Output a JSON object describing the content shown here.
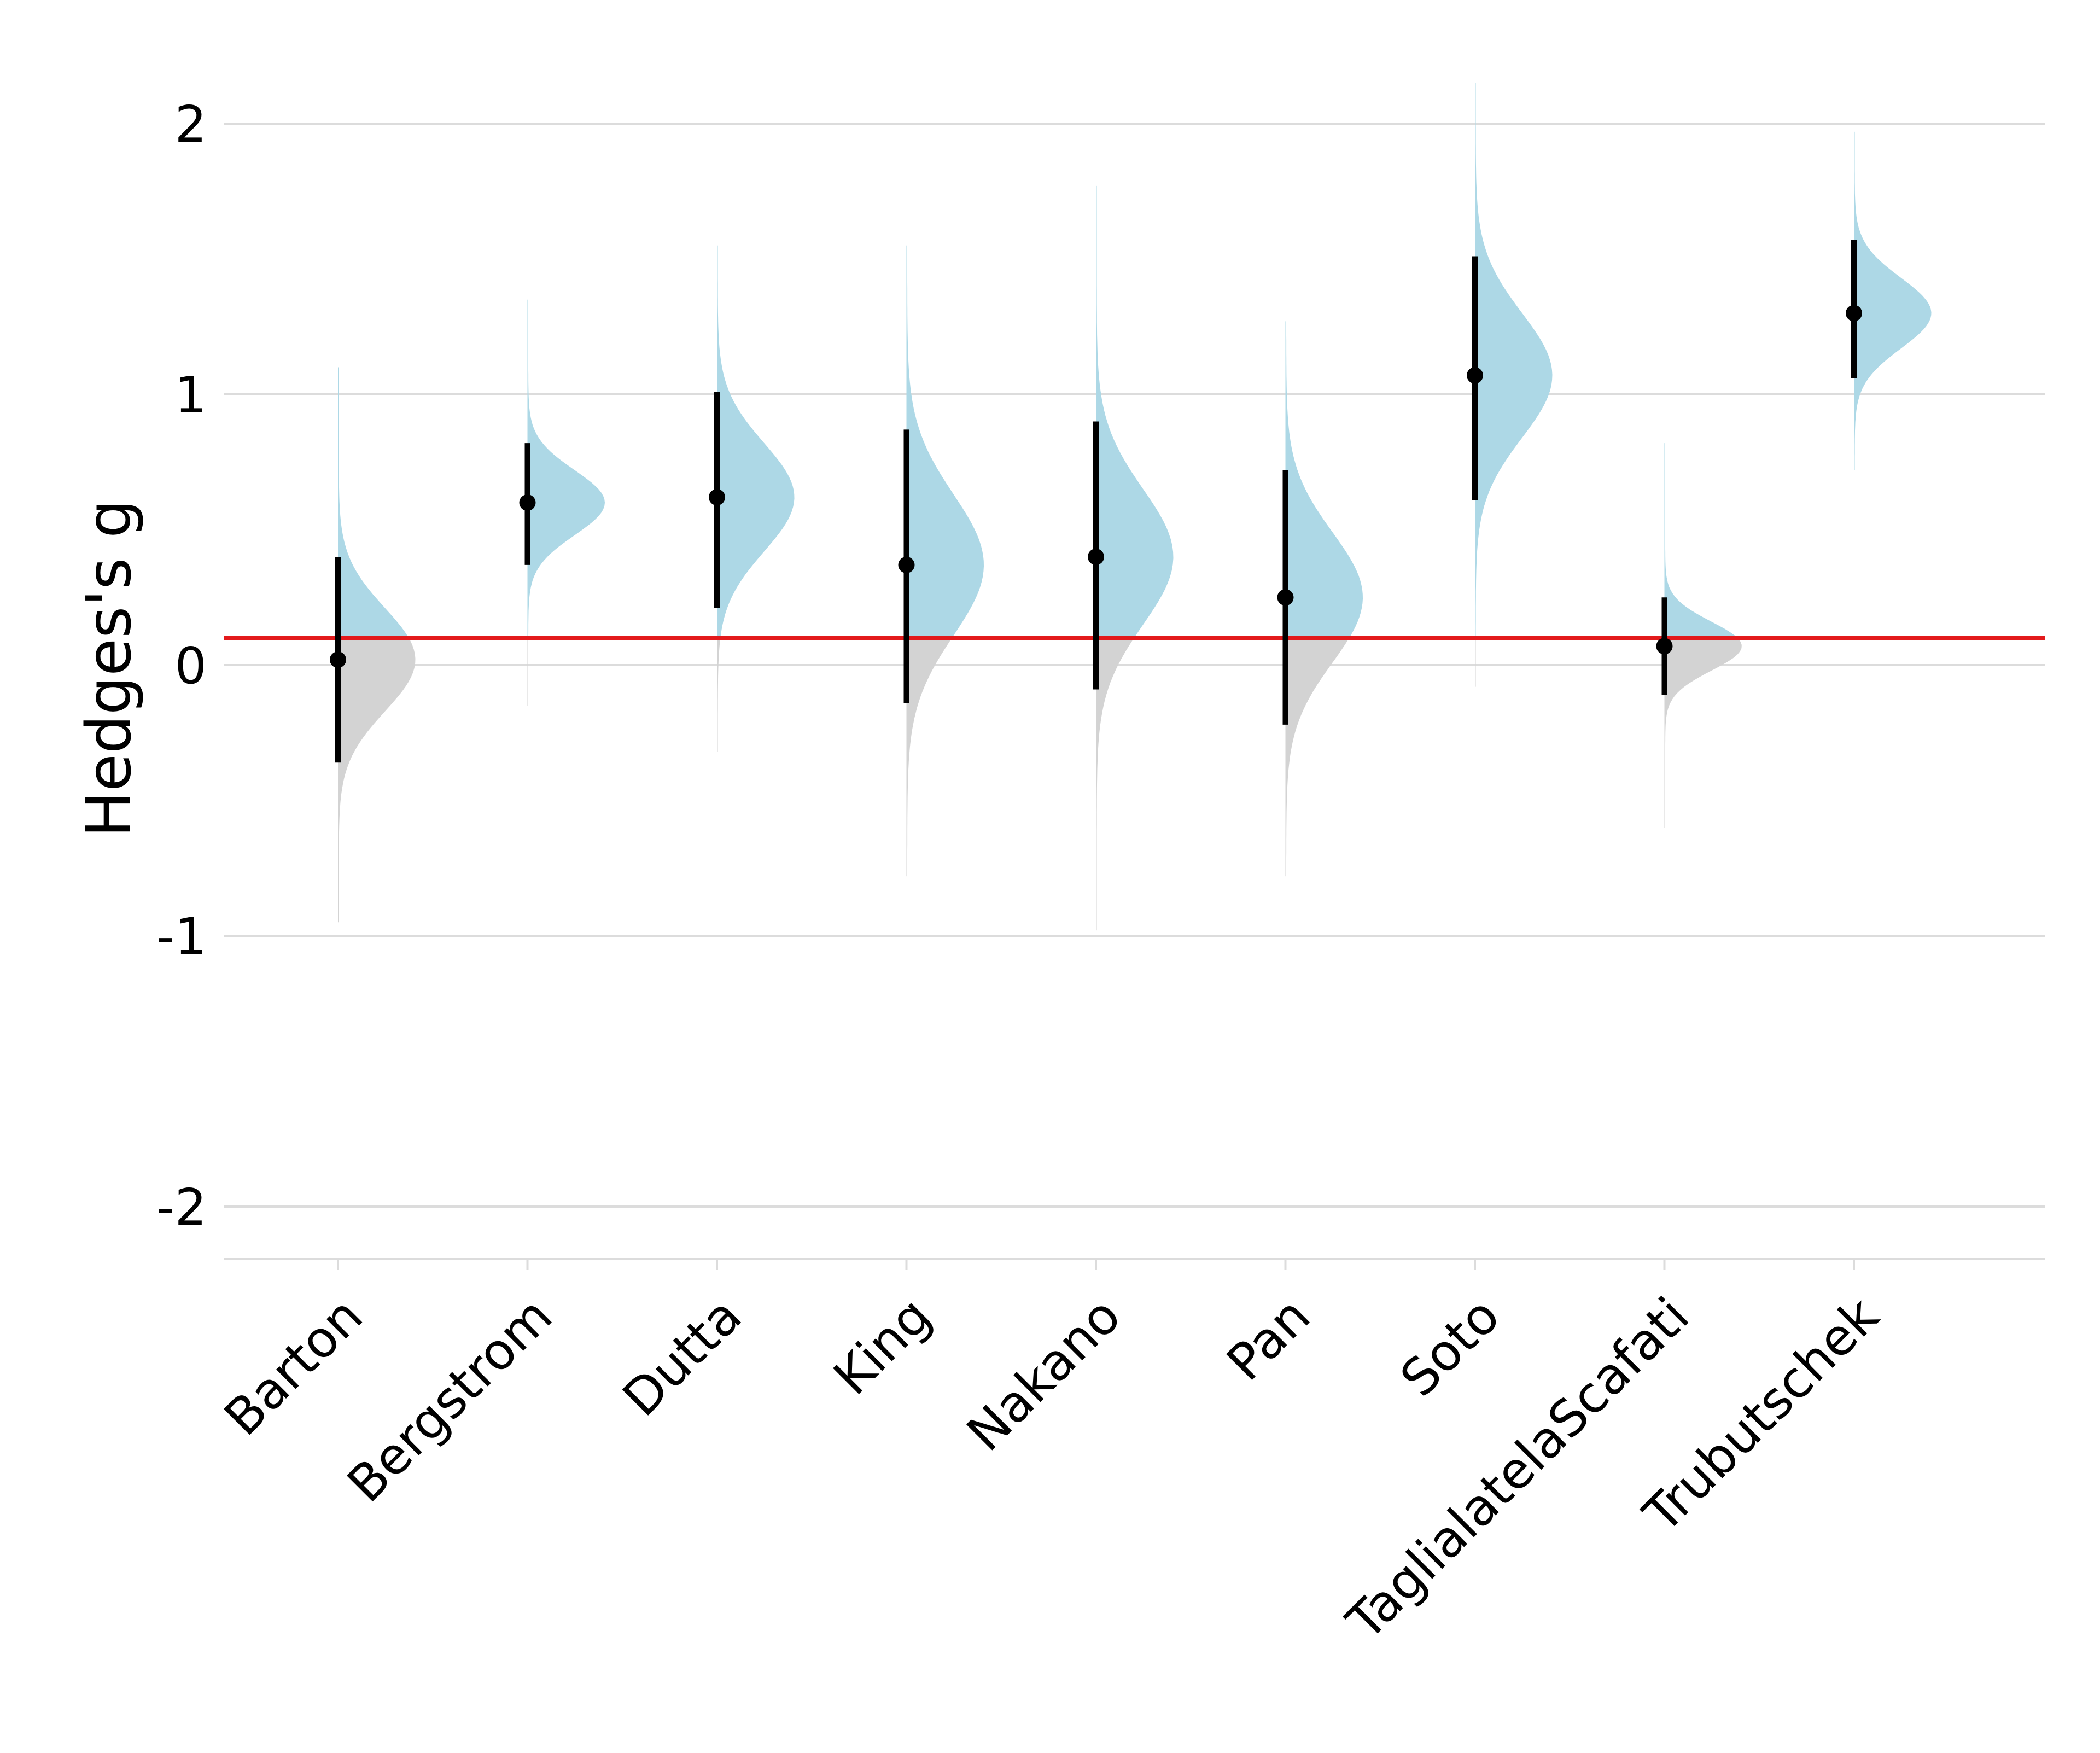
{
  "chart_data": {
    "type": "violin",
    "ylabel": "Hedges's g",
    "xlabel": "",
    "ylim": [
      -2.2,
      2.2
    ],
    "yticks": [
      "2",
      "1",
      "0",
      "-1",
      "-2"
    ],
    "ytick_values": [
      2,
      1,
      0,
      -1,
      -2
    ],
    "grid": true,
    "reference_line": {
      "value": 0.1,
      "color": "#e31a1c"
    },
    "colors": {
      "above": "#add8e6",
      "below": "#d3d3d3",
      "point": "#000000"
    },
    "categories": [
      "Barton",
      "Bergstrom",
      "Dutta",
      "King",
      "Nakano",
      "Pan",
      "Soto",
      "TaglialatelaScafati",
      "Trubutschek"
    ],
    "estimates": [
      0.02,
      0.6,
      0.62,
      0.37,
      0.4,
      0.25,
      1.07,
      0.07,
      1.3
    ],
    "ci_lower": [
      -0.36,
      0.37,
      0.21,
      -0.14,
      -0.09,
      -0.22,
      0.61,
      -0.11,
      1.06
    ],
    "ci_upper": [
      0.4,
      0.82,
      1.01,
      0.87,
      0.9,
      0.72,
      1.51,
      0.25,
      1.57
    ],
    "dist_sd": [
      0.19,
      0.12,
      0.2,
      0.26,
      0.25,
      0.24,
      0.23,
      0.09,
      0.13
    ],
    "dist_min": [
      -0.95,
      -0.15,
      -0.32,
      -0.78,
      -0.98,
      -0.78,
      -0.08,
      -0.6,
      0.72
    ],
    "dist_max": [
      1.1,
      1.35,
      1.55,
      1.55,
      1.77,
      1.27,
      2.15,
      0.82,
      1.97
    ]
  }
}
